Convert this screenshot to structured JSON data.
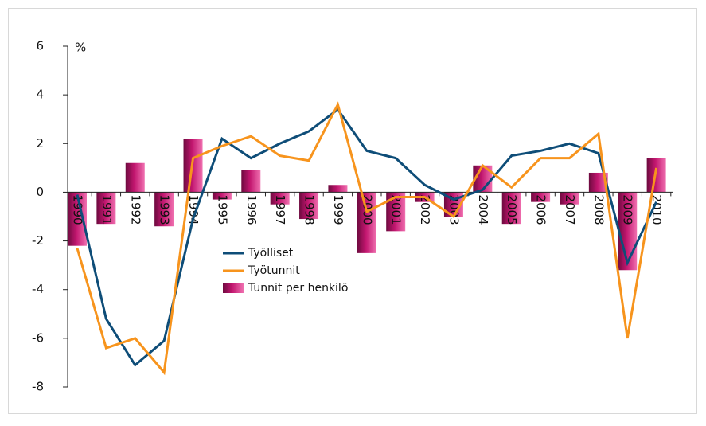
{
  "chart_data": {
    "type": "bar",
    "unit_label": "%",
    "categories": [
      "1990",
      "1991",
      "1992",
      "1993",
      "1994",
      "1995",
      "1996",
      "1997",
      "1998",
      "1999",
      "2000",
      "2001",
      "2002",
      "2003",
      "2004",
      "2005",
      "2006",
      "2007",
      "2008",
      "2009",
      "2010"
    ],
    "series": [
      {
        "name": "Työlliset",
        "type": "line",
        "color": "#0e4d78",
        "values": [
          -0.1,
          -5.2,
          -7.1,
          -6.1,
          -1.1,
          2.2,
          1.4,
          2.0,
          2.5,
          3.4,
          1.7,
          1.4,
          0.3,
          -0.3,
          0.1,
          1.5,
          1.7,
          2.0,
          1.6,
          -2.9,
          -0.4
        ]
      },
      {
        "name": "Työtunnit",
        "type": "line",
        "color": "#f7941d",
        "values": [
          -2.3,
          -6.4,
          -6.0,
          -7.4,
          1.4,
          1.9,
          2.3,
          1.5,
          1.3,
          3.6,
          -0.8,
          -0.2,
          -0.2,
          -1.0,
          1.1,
          0.2,
          1.4,
          1.4,
          2.4,
          -6.0,
          1.0
        ]
      },
      {
        "name": "Tunnit per henkilö",
        "type": "bar",
        "color": "#c2166f",
        "values": [
          -2.2,
          -1.3,
          1.2,
          -1.4,
          2.2,
          -0.3,
          0.9,
          -0.5,
          -1.1,
          0.3,
          -2.5,
          -1.6,
          -0.4,
          -1.0,
          1.1,
          -1.3,
          -0.4,
          -0.5,
          0.8,
          -3.2,
          1.4
        ]
      }
    ],
    "ylim": [
      -8,
      6
    ],
    "yticks": [
      -8,
      -6,
      -4,
      -2,
      0,
      2,
      4,
      6
    ],
    "grid": false
  }
}
